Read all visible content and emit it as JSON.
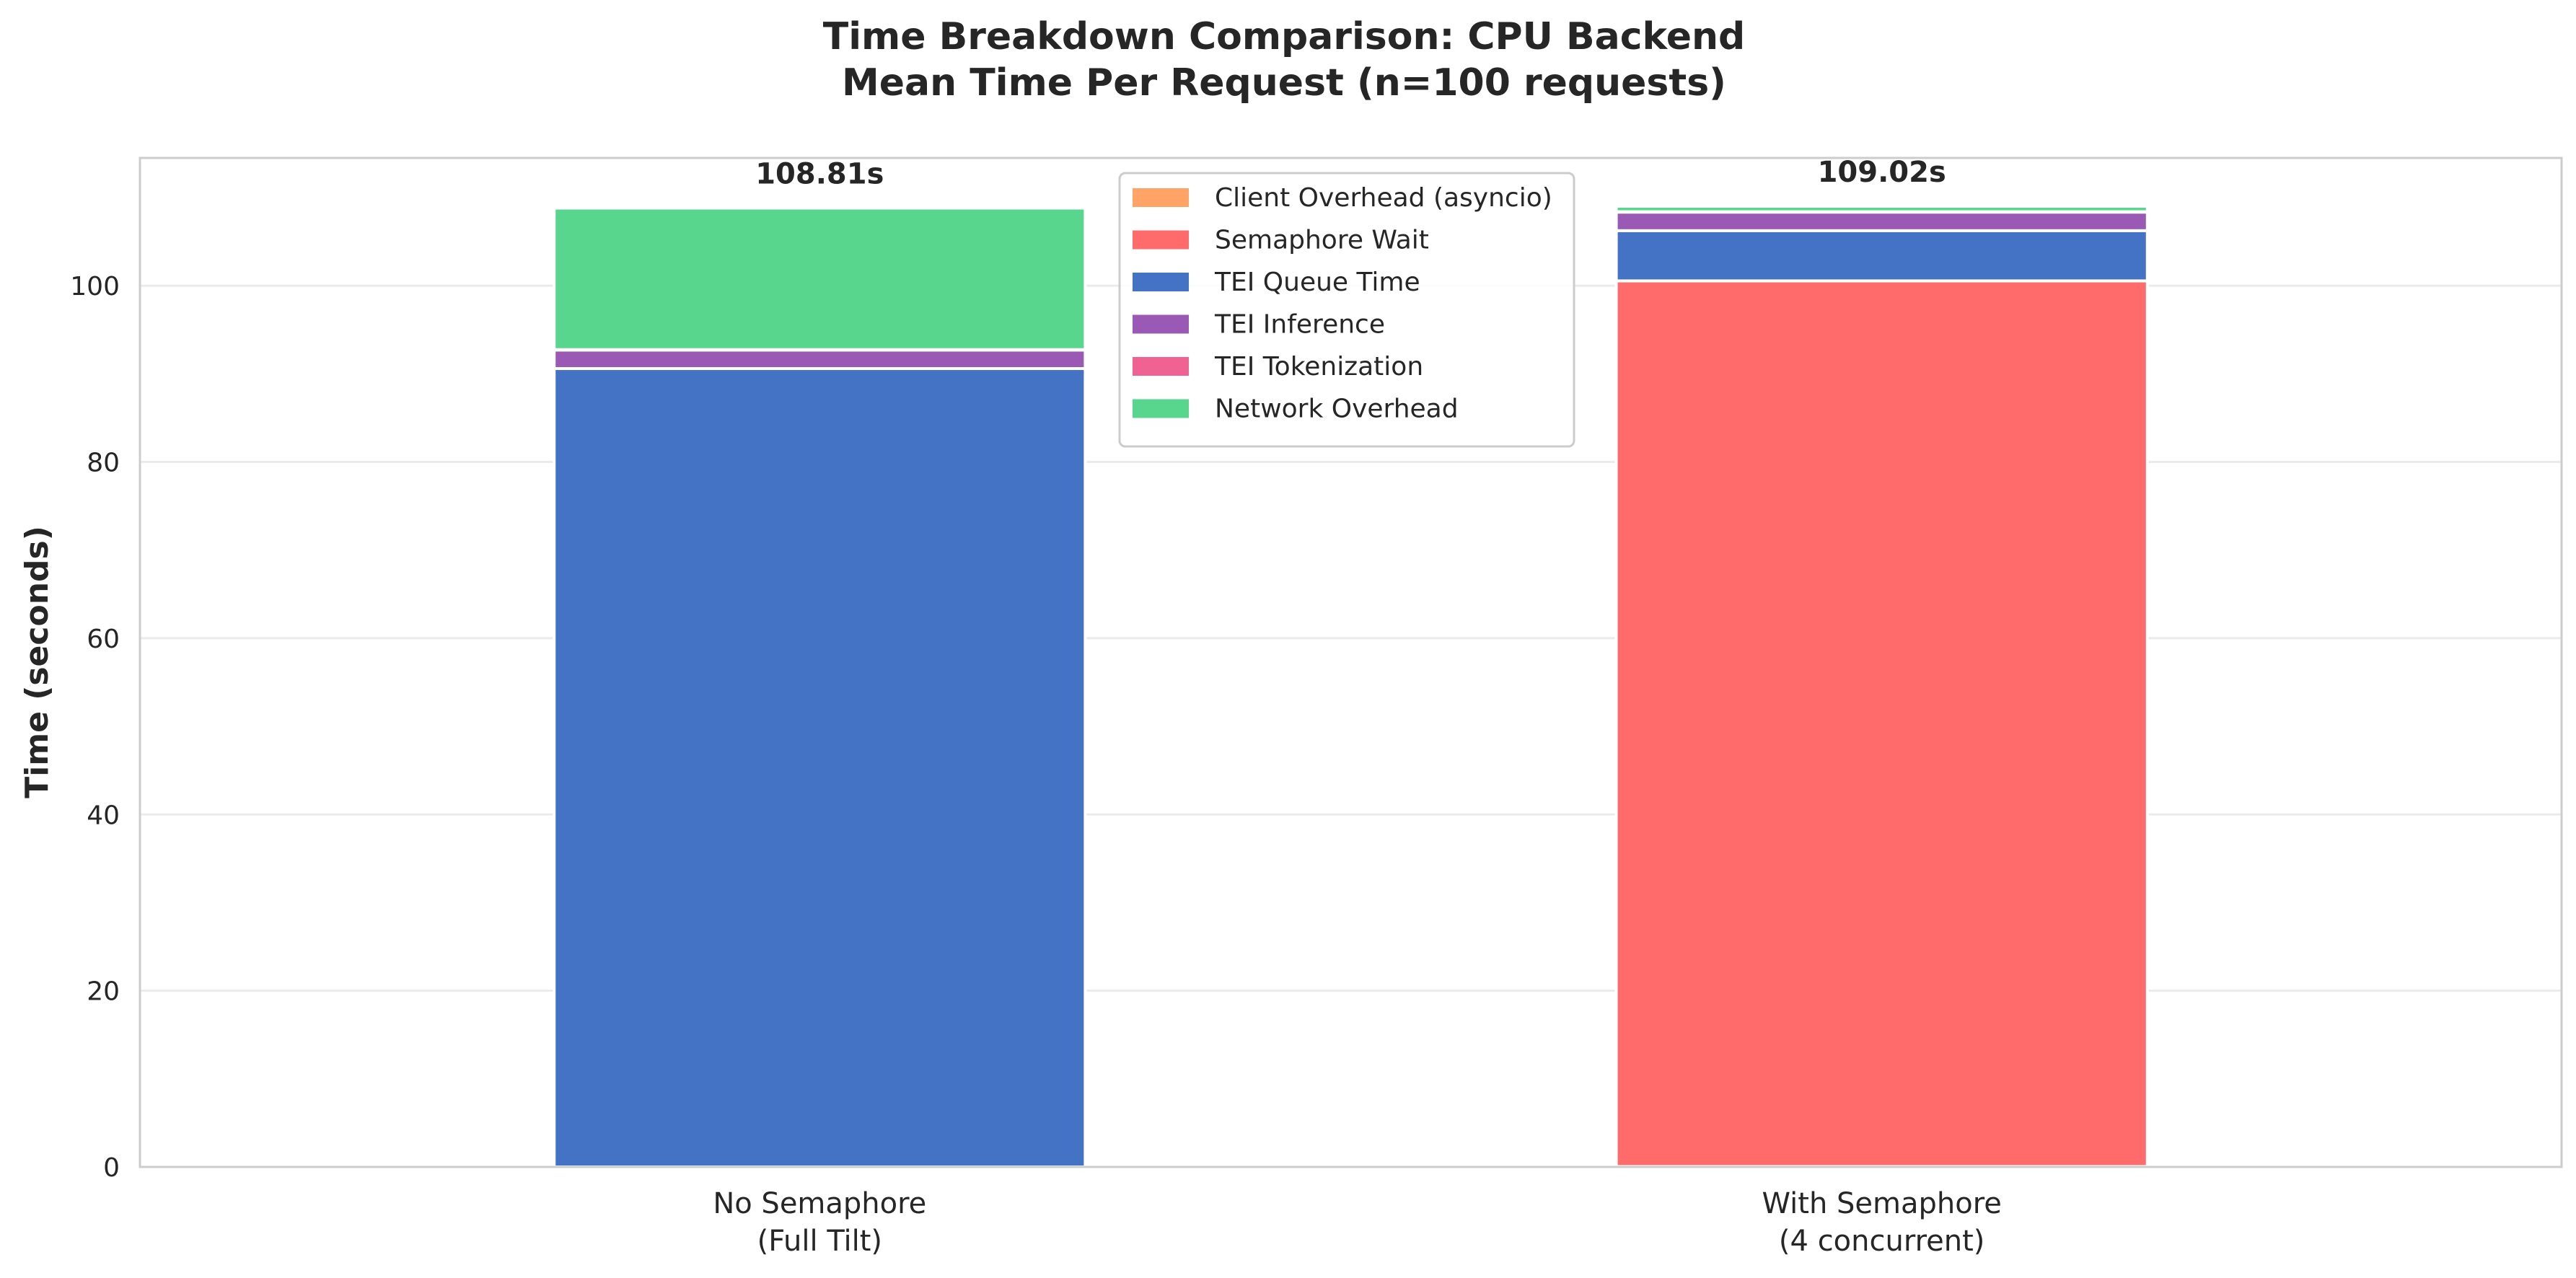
{
  "chart_data": {
    "type": "bar",
    "stacked": true,
    "title": [
      "Time Breakdown Comparison: CPU Backend",
      "Mean Time Per Request (n=100 requests)"
    ],
    "xlabel": "",
    "ylabel": "Time (seconds)",
    "ylim": [
      0,
      114.5
    ],
    "yticks": [
      0,
      20,
      40,
      60,
      80,
      100
    ],
    "grid": true,
    "legend_position": "top-center",
    "categories": [
      [
        "No Semaphore",
        "(Full Tilt)"
      ],
      [
        "With Semaphore",
        "(4 concurrent)"
      ]
    ],
    "totals": [
      108.81,
      109.02
    ],
    "total_labels": [
      "108.81s",
      "109.02s"
    ],
    "series": [
      {
        "name": "Client Overhead (asyncio)",
        "color": "#FFA366",
        "values": [
          0.0,
          0.05
        ]
      },
      {
        "name": "Semaphore Wait",
        "color": "#FF6B6B",
        "values": [
          0.0,
          100.5
        ]
      },
      {
        "name": "TEI Queue Time",
        "color": "#4472C4",
        "values": [
          90.6,
          5.7
        ]
      },
      {
        "name": "TEI Inference",
        "color": "#9B59B6",
        "values": [
          2.1,
          2.1
        ]
      },
      {
        "name": "TEI Tokenization",
        "color": "#F06292",
        "values": [
          0.05,
          0.05
        ]
      },
      {
        "name": "Network Overhead",
        "color": "#58D68D",
        "values": [
          16.06,
          0.62
        ]
      }
    ]
  }
}
